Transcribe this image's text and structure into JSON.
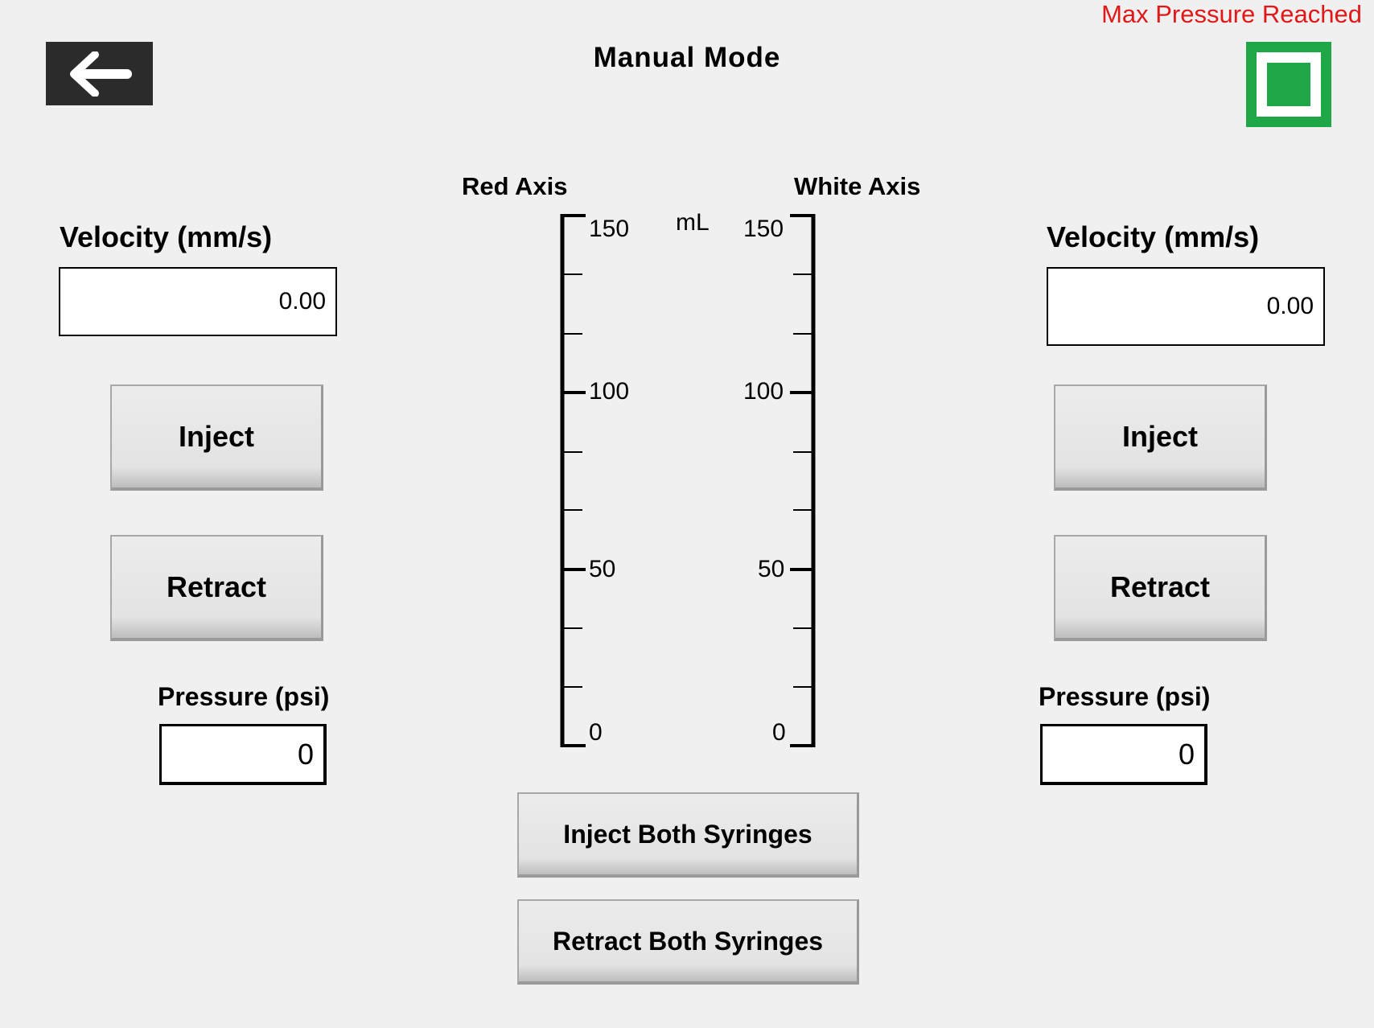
{
  "header": {
    "title": "Manual Mode",
    "status": "Max Pressure Reached",
    "back_icon": "arrow-left-icon",
    "stop_icon": "stop-square-icon",
    "stop_color": "#1fa646",
    "status_color": "#e01818"
  },
  "left_panel": {
    "velocity_label": "Velocity (mm/s)",
    "velocity_value": "0.00",
    "inject_label": "Inject",
    "retract_label": "Retract",
    "pressure_label": "Pressure (psi)",
    "pressure_value": "0"
  },
  "right_panel": {
    "velocity_label": "Velocity (mm/s)",
    "velocity_value": "0.00",
    "inject_label": "Inject",
    "retract_label": "Retract",
    "pressure_label": "Pressure (psi)",
    "pressure_value": "0"
  },
  "gauge": {
    "red_axis_title": "Red Axis",
    "white_axis_title": "White Axis",
    "unit": "mL",
    "ticks": [
      "150",
      "100",
      "50",
      "0"
    ]
  },
  "actions": {
    "inject_both_label": "Inject Both Syringes",
    "retract_both_label": "Retract Both Syringes"
  }
}
